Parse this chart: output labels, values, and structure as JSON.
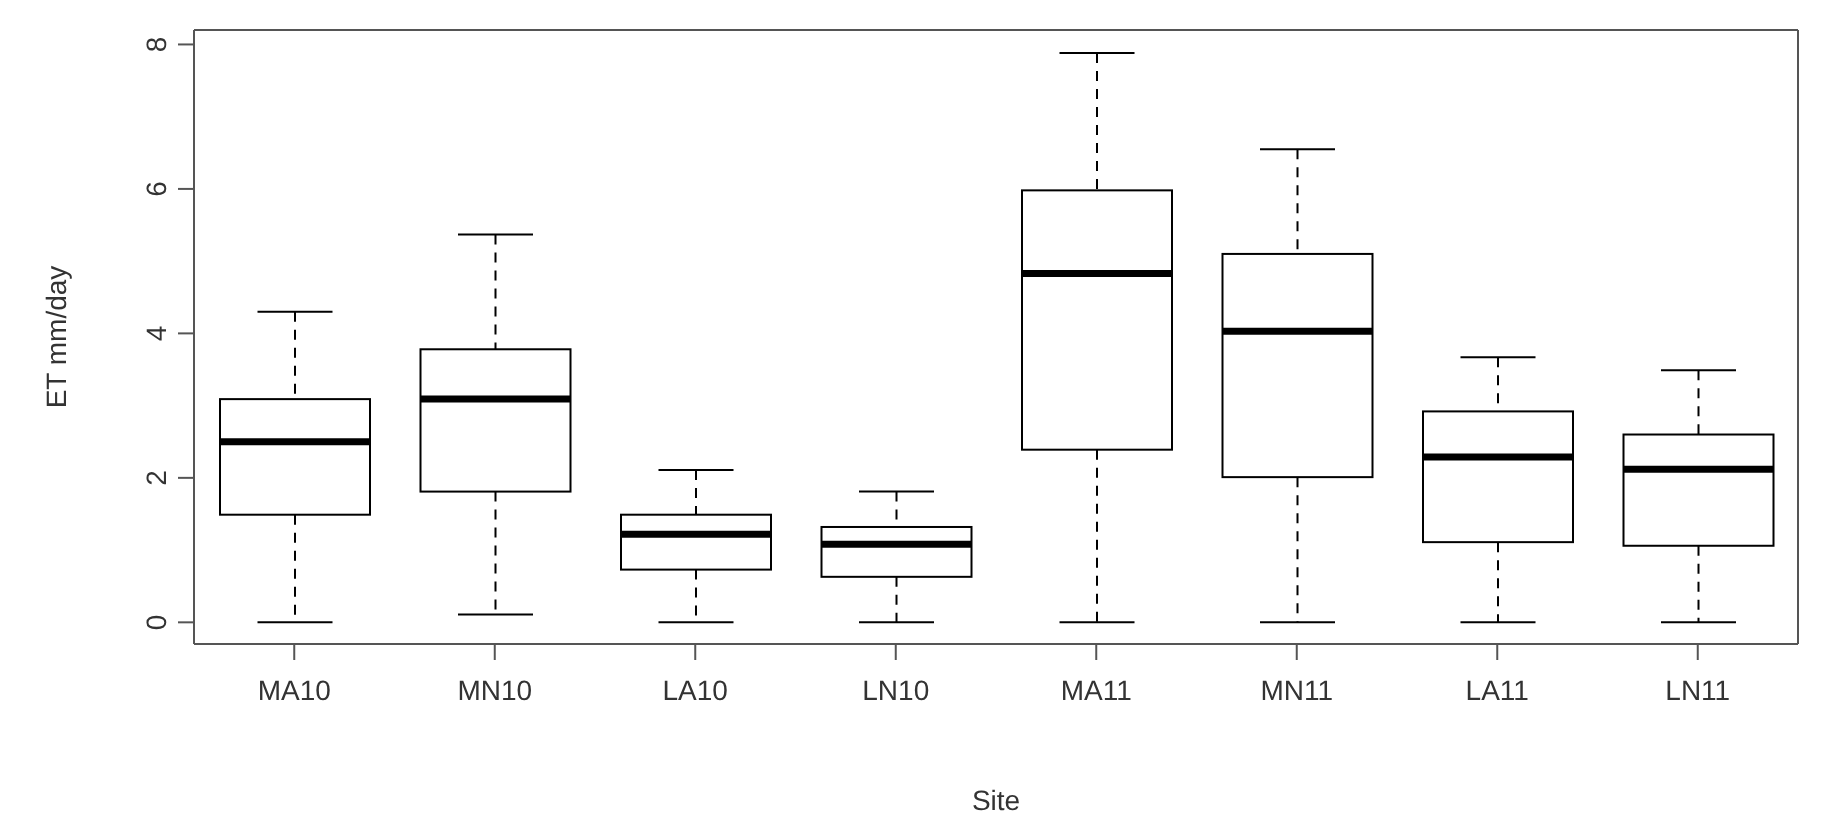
{
  "chart_data": {
    "type": "box",
    "xlabel": "Site",
    "ylabel": "ET mm/day",
    "categories": [
      "MA10",
      "MN10",
      "LA10",
      "LN10",
      "MA11",
      "MN11",
      "LA11",
      "LN11"
    ],
    "boxes": [
      {
        "low": 0,
        "q1": 1.49,
        "median": 2.5,
        "q3": 3.09,
        "high": 4.3
      },
      {
        "low": 0.11,
        "q1": 1.81,
        "median": 3.09,
        "q3": 3.78,
        "high": 5.37
      },
      {
        "low": 0,
        "q1": 0.73,
        "median": 1.22,
        "q3": 1.49,
        "high": 2.11
      },
      {
        "low": 0,
        "q1": 0.63,
        "median": 1.08,
        "q3": 1.32,
        "high": 1.81
      },
      {
        "low": 0,
        "q1": 2.39,
        "median": 4.83,
        "q3": 5.98,
        "high": 7.88
      },
      {
        "low": 0,
        "q1": 2.01,
        "median": 4.03,
        "q3": 5.1,
        "high": 6.55
      },
      {
        "low": 0,
        "q1": 1.11,
        "median": 2.29,
        "q3": 2.92,
        "high": 3.67
      },
      {
        "low": 0,
        "q1": 1.06,
        "median": 2.12,
        "q3": 2.6,
        "high": 3.49
      }
    ],
    "color": "#000000",
    "ylim": [
      -0.3,
      8.2
    ],
    "yticks": [
      0,
      2,
      4,
      6,
      8
    ]
  }
}
